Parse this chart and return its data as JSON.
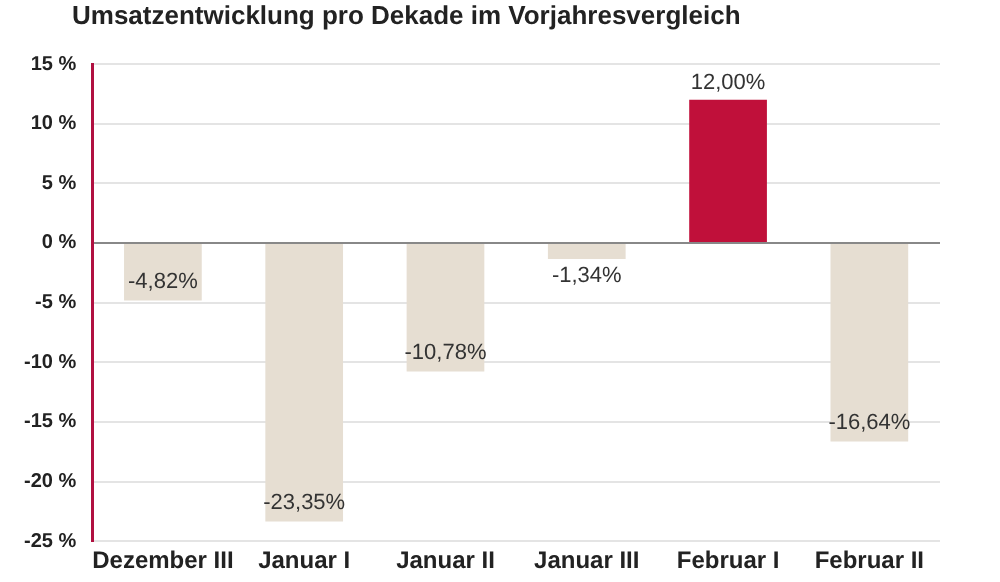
{
  "chart_data": {
    "type": "bar",
    "title": "Umsatzentwicklung pro Dekade im Vorjahresvergleich",
    "categories": [
      "Dezember III",
      "Januar I",
      "Januar II",
      "Januar III",
      "Februar I",
      "Februar II"
    ],
    "values": [
      -4.82,
      -23.35,
      -10.78,
      -1.34,
      12.0,
      -16.64
    ],
    "colors": [
      "#e6ded2",
      "#e6ded2",
      "#e6ded2",
      "#e6ded2",
      "#c0103a",
      "#e6ded2"
    ],
    "value_labels": [
      "-4,82%",
      "-23,35%",
      "-10,78%",
      "-1,34%",
      "12,00%",
      "-16,64%"
    ],
    "ylim": [
      -25,
      15
    ],
    "yticks": [
      {
        "value": 15,
        "label": "15 %"
      },
      {
        "value": 10,
        "label": "10 %"
      },
      {
        "value": 5,
        "label": "5 %"
      },
      {
        "value": 0,
        "label": "0 %"
      },
      {
        "value": -5,
        "label": "-5 %"
      },
      {
        "value": -10,
        "label": "-10 %"
      },
      {
        "value": -15,
        "label": "-15 %"
      },
      {
        "value": -20,
        "label": "-20 %"
      },
      {
        "value": -25,
        "label": "-25 %"
      }
    ],
    "grid": "y",
    "legend": false
  }
}
